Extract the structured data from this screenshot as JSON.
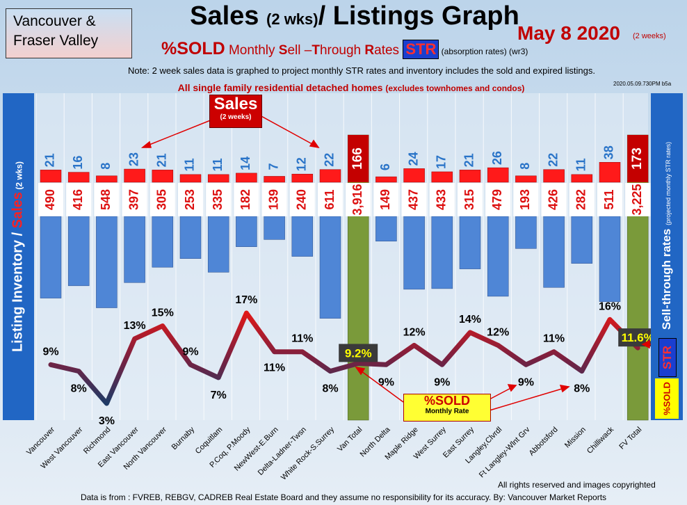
{
  "header": {
    "region_line1": "Vancouver &",
    "region_line2": "Fraser Valley",
    "title_main": "Sales ",
    "title_small": "(2 wks)",
    "title_rest": "/ Listings Graph",
    "date": "May 8 2020",
    "date_sub": "(2 weeks)",
    "pct_sold": "%SOLD",
    "subtitle_pre": " Monthly ",
    "subtitle_s": "S",
    "subtitle_ell": "ell –",
    "subtitle_t": "T",
    "subtitle_hrough": "hrough ",
    "subtitle_r": "R",
    "subtitle_ates": "ates",
    "str_badge": "STR",
    "absorption": "  (absorption rates) ",
    "wr3": "(wr3)",
    "note": "Note: 2 week sales data is graphed to project monthly STR rates and inventory includes the sold and expired listings.",
    "scope_main": "All single family residential detached homes ",
    "scope_sub": "(excludes townhomes and condos)",
    "stamp": "2020.05.09.730PM b5a"
  },
  "callouts": {
    "sales": "Sales",
    "sales_sub": "(2 weeks)",
    "sold": "%SOLD",
    "sold_sub": "Monthly Rate"
  },
  "axes": {
    "left_part1": "Listing Inventory / ",
    "left_part2": "Sales",
    "left_part3": " (2  wks)",
    "right_main": "Sell-through rates  ",
    "right_sub": "(projected monthly STR rates)",
    "str_label": "STR",
    "sold_label": "%SOLD"
  },
  "footer": {
    "rights": "All rights reserved and  images copyrighted",
    "source": "Data is from : FVREB, REBGV, CADREB Real Estate Board and they assume no responsibility for its accuracy. By: Vancouver Market Reports"
  },
  "colors": {
    "sales_bar": "#ff1a1a",
    "listings_bar": "#4f86d6",
    "total_bar": "#7a9a3a",
    "line_low": "#1e3a66",
    "line_high": "#e01818",
    "axis_panel": "#2166c4"
  },
  "chart_data": {
    "type": "bar",
    "categories": [
      "Vancouver",
      "West Vancouver",
      "Richmond",
      "East Vancouver",
      "North Vancouver",
      "Burnaby",
      "Coquitlam",
      "P.Coq, P.Moody",
      "NewWest-E.Burn",
      "Delta-Ladner-Twsn",
      "White Rock-S.Surrey",
      "Van Total",
      "North Delta",
      "Maple Ridge",
      "West Surrey",
      "East Surrey",
      "Langley,Clvrdl",
      "Ft Langley-Wlnt Grv",
      "Abbotsford",
      "Mission",
      "Chilliwack",
      "FV Total"
    ],
    "series": [
      {
        "name": "Sales",
        "values": [
          21,
          16,
          8,
          23,
          21,
          11,
          11,
          14,
          7,
          12,
          22,
          166,
          6,
          24,
          17,
          21,
          26,
          8,
          22,
          11,
          38,
          173
        ]
      },
      {
        "values": [
          490,
          416,
          548,
          397,
          305,
          253,
          335,
          182,
          139,
          240,
          611,
          3916,
          149,
          437,
          433,
          315,
          479,
          193,
          426,
          282,
          511,
          3225
        ]
      },
      {
        "name": "%SOLD",
        "values": [
          9,
          8,
          3,
          13,
          15,
          9,
          7,
          17,
          11,
          11,
          8,
          9.2,
          9,
          12,
          9,
          14,
          12,
          9,
          11,
          8,
          16,
          11.6
        ]
      }
    ],
    "sales_labels": [
      "21",
      "16",
      "8",
      "23",
      "21",
      "11",
      "11",
      "14",
      "7",
      "12",
      "22",
      "166",
      "6",
      "24",
      "17",
      "21",
      "26",
      "8",
      "22",
      "11",
      "38",
      "173"
    ],
    "listing_labels": [
      "490",
      "416",
      "548",
      "397",
      "305",
      "253",
      "335",
      "182",
      "139",
      "240",
      "611",
      "3,916",
      "149",
      "437",
      "433",
      "315",
      "479",
      "193",
      "426",
      "282",
      "511",
      "3,225"
    ],
    "pct_labels": [
      "9%",
      "8%",
      "3%",
      "13%",
      "15%",
      "9%",
      "7%",
      "17%",
      "11%",
      "11%",
      "8%",
      "9.2%",
      "9%",
      "12%",
      "9%",
      "14%",
      "12%",
      "9%",
      "11%",
      "8%",
      "16%",
      "11.6%"
    ],
    "total_indices": [
      11,
      21
    ],
    "grid": true,
    "legend": "none"
  }
}
